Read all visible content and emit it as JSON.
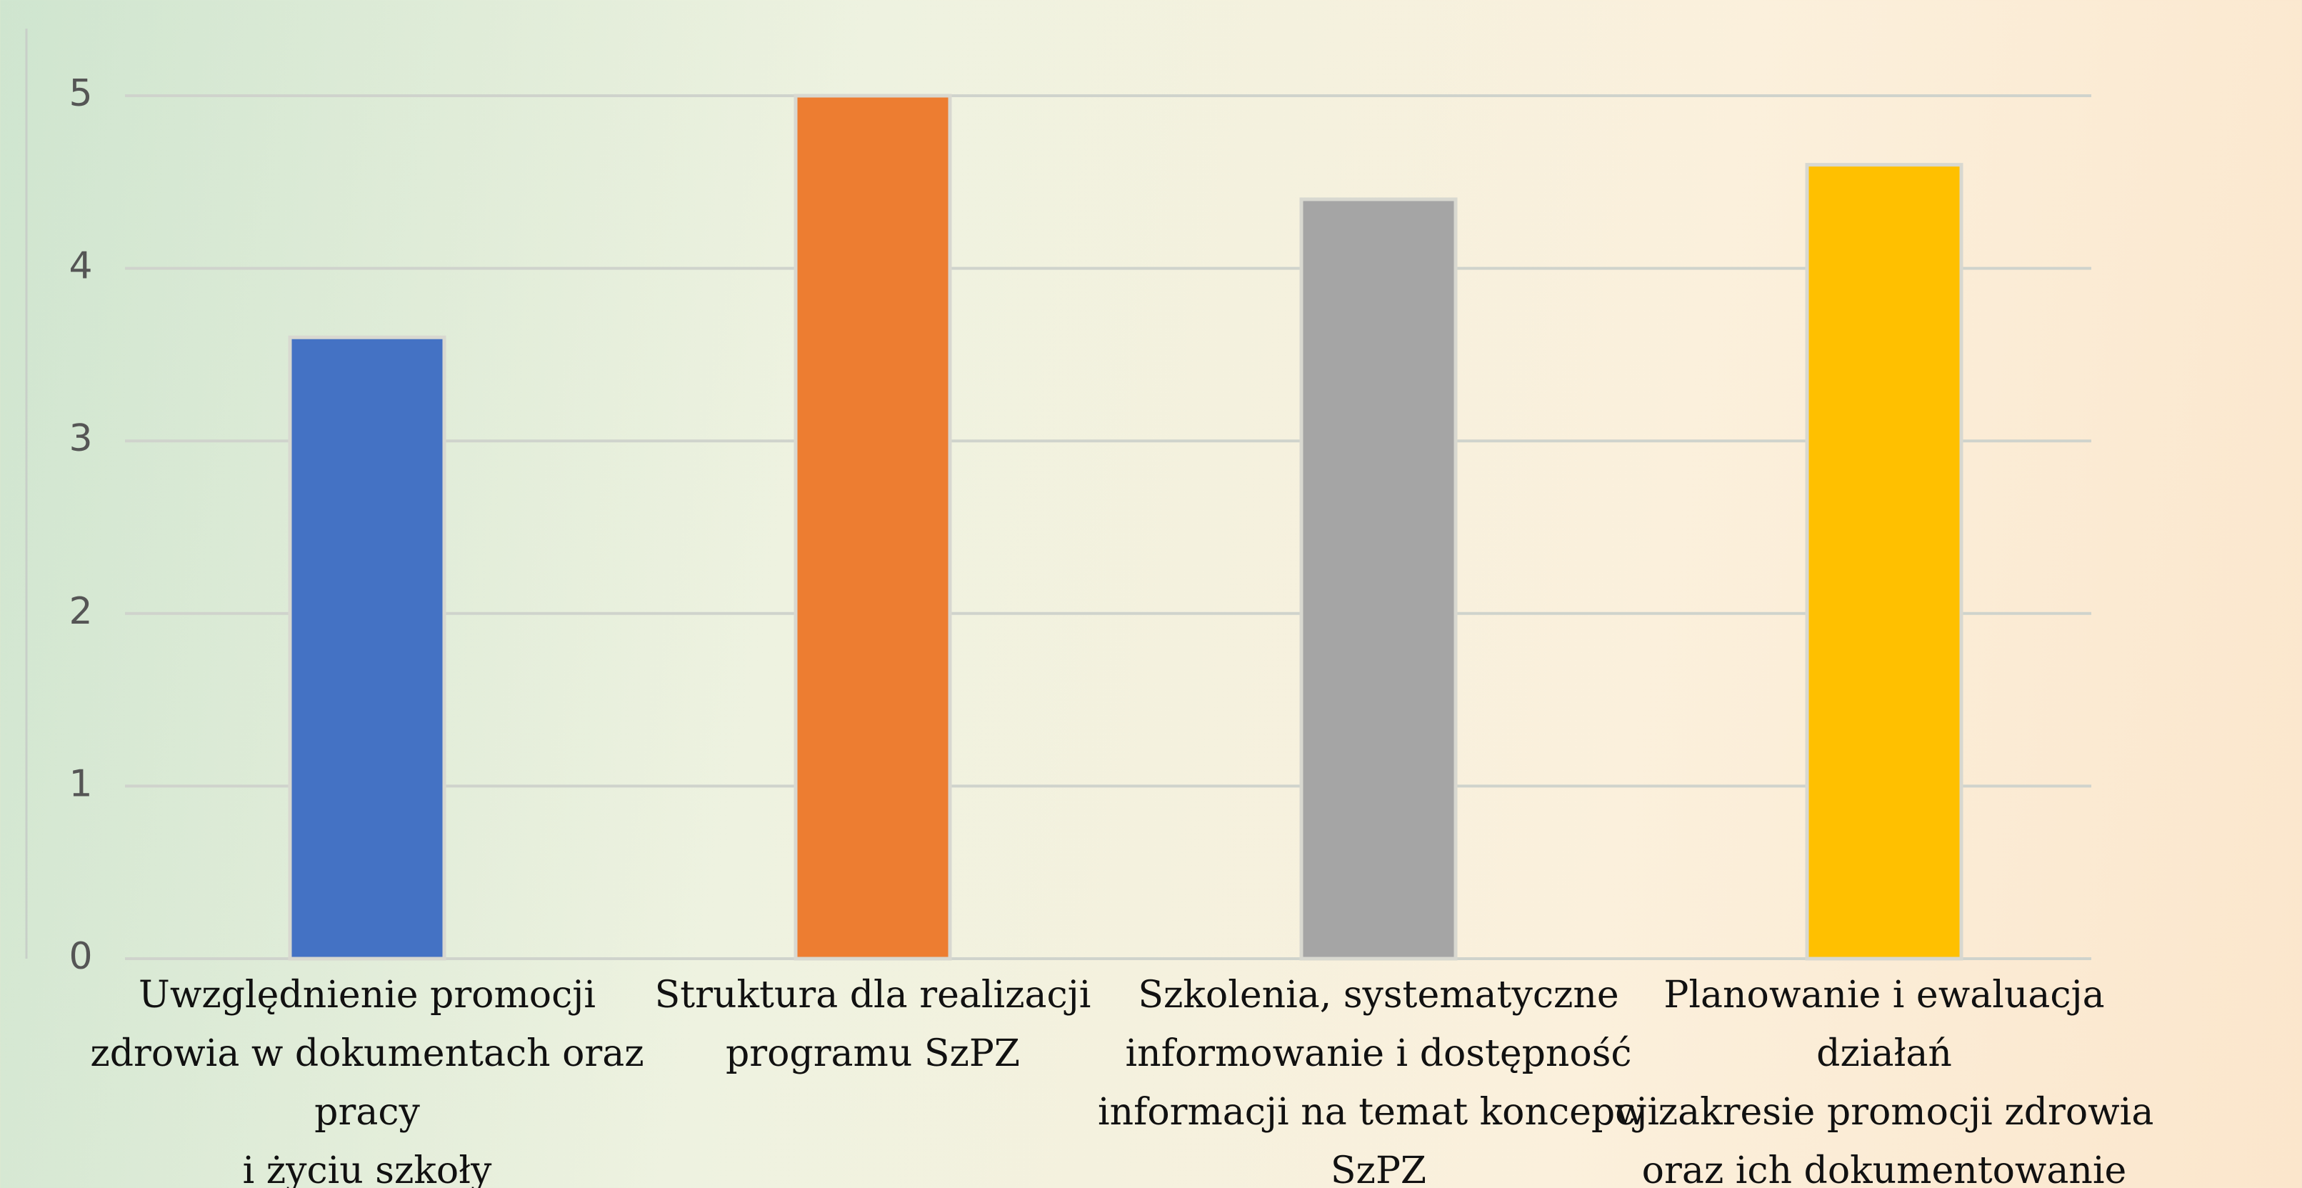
{
  "chart_data": {
    "type": "bar",
    "categories": [
      "Uwzględnienie promocji\nzdrowia w dokumentach oraz\npracy\ni życiu szkoły",
      "Struktura dla realizacji\nprogramu SzPZ",
      "Szkolenia, systematyczne\ninformowanie i dostępność\ninformacji na temat koncepcji\nSzPZ",
      "Planowanie i ewaluacja działań\nw zakresie promocji zdrowia\noraz ich dokumentowanie"
    ],
    "values": [
      3.6,
      5,
      4.4,
      4.6
    ],
    "colors": [
      "#4472c4",
      "#ed7d31",
      "#a5a5a5",
      "#ffc000"
    ],
    "ylim": [
      0,
      5
    ],
    "yticks": [
      0,
      1,
      2,
      3,
      4,
      5
    ],
    "grid": true
  }
}
